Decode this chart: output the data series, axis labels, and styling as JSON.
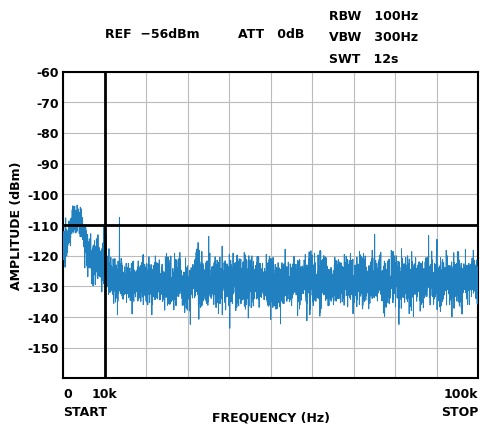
{
  "xlabel": "FREQUENCY (Hz)",
  "ylabel": "AMPLITUDE (dBm)",
  "xlim": [
    0,
    100000
  ],
  "ylim": [
    -160,
    -60
  ],
  "yticks": [
    -150,
    -140,
    -130,
    -120,
    -110,
    -100,
    -90,
    -80,
    -70,
    -60
  ],
  "xtick_positions": [
    0,
    10000,
    100000
  ],
  "xtick_labels": [
    "0",
    "10k",
    "100k"
  ],
  "grid_color": "#bbbbbb",
  "line_color": "#2080c0",
  "line_width": 0.7,
  "background_color": "#ffffff",
  "vline_x": 10000,
  "hline_y": -110,
  "spike_x": 13500,
  "spike_y": -107.5,
  "ann_ref": "REF  −56dBm",
  "ann_att": "ATT   0dB",
  "ann_rbw": "RBW   100Hz",
  "ann_vbw": "VBW   300Hz",
  "ann_swt": "SWT   12s"
}
